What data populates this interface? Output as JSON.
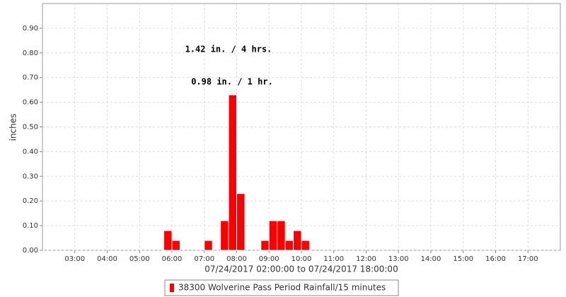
{
  "chart_data": {
    "type": "bar",
    "x": [
      "05:45",
      "06:00",
      "07:00",
      "07:30",
      "07:45",
      "08:00",
      "08:45",
      "09:00",
      "09:15",
      "09:30",
      "09:45",
      "10:00"
    ],
    "series": [
      {
        "name": "38300 Wolverine Pass Period Rainfall/15 minutes",
        "color": "#ff0000",
        "values": [
          0.08,
          0.04,
          0.04,
          0.12,
          0.63,
          0.23,
          0.04,
          0.12,
          0.12,
          0.04,
          0.08,
          0.04
        ]
      }
    ],
    "xlim": [
      "02:00",
      "18:00"
    ],
    "xticks": [
      "03:00",
      "04:00",
      "05:00",
      "06:00",
      "07:00",
      "08:00",
      "09:00",
      "10:00",
      "11:00",
      "12:00",
      "13:00",
      "14:00",
      "15:00",
      "16:00",
      "17:00"
    ],
    "xlabel": "07/24/2017 02:00:00 to 07/24/2017 18:00:00",
    "ylabel": "inches",
    "ylim": [
      0,
      1.0
    ],
    "yticks": [
      {
        "value": 0,
        "label": "0.00"
      },
      {
        "value": 0.1,
        "label": "0.10"
      },
      {
        "value": 0.2,
        "label": "0.20"
      },
      {
        "value": 0.3,
        "label": "0.30"
      },
      {
        "value": 0.4,
        "label": "0.40"
      },
      {
        "value": 0.5,
        "label": "0.50"
      },
      {
        "value": 0.6,
        "label": "0.60"
      },
      {
        "value": 0.7,
        "label": "0.70"
      },
      {
        "value": 0.8,
        "label": "0.80"
      },
      {
        "value": 0.9,
        "label": "0.90"
      }
    ],
    "annotations": [
      "1.42 in. / 4 hrs.",
      "0.98 in. / 1 hr."
    ],
    "grid": true
  }
}
